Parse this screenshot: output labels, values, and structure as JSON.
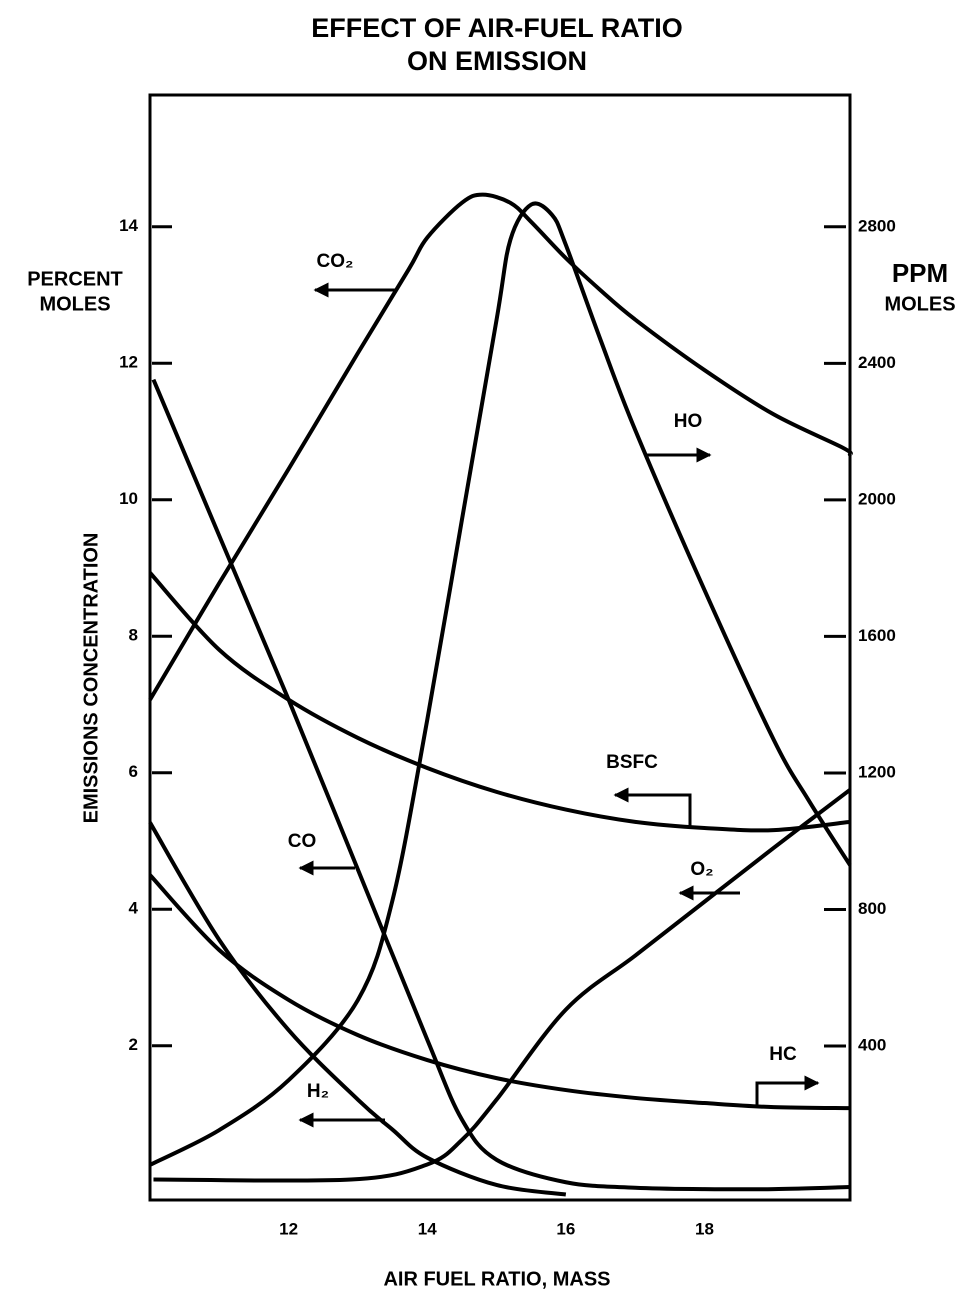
{
  "chart_data": {
    "type": "line",
    "title": [
      "EFFECT OF AIR-FUEL RATIO",
      "ON EMISSION"
    ],
    "x_label": "AIR FUEL RATIO, MASS",
    "y_label": "EMISSIONS CONCENTRATION",
    "y_unit": [
      "PERCENT",
      "MOLES"
    ],
    "y2_unit": [
      "PPM",
      "MOLES"
    ],
    "xlim": [
      10,
      20.1
    ],
    "xticks": [
      12,
      14,
      16,
      18
    ],
    "ylim": [
      -0.26,
      15.93
    ],
    "yticks": [
      2,
      4,
      6,
      8,
      10,
      12,
      14
    ],
    "y2lim": [
      -51,
      3186
    ],
    "y2ticks": [
      400,
      800,
      1200,
      1600,
      2000,
      2400,
      2800
    ],
    "series": [
      {
        "name": "CO₂",
        "color": "#000000",
        "x": [
          10,
          11,
          12,
          13,
          13.73,
          14,
          14.5,
          14.8,
          15.2,
          15.5,
          16,
          16.5,
          17,
          18,
          19,
          20,
          20.1
        ],
        "values": [
          7.07,
          8.78,
          10.45,
          12.15,
          13.37,
          13.84,
          14.35,
          14.47,
          14.35,
          14.07,
          13.54,
          13.07,
          12.64,
          11.9,
          11.25,
          10.76,
          10.66
        ]
      },
      {
        "name": "HO",
        "color": "#000000",
        "axis": "y2",
        "x": [
          10,
          11,
          12,
          13,
          13.5,
          14,
          14.5,
          15,
          15.2,
          15.5,
          15.8,
          16,
          16.5,
          17,
          18,
          19,
          19.5,
          20.1
        ],
        "values": [
          52,
          154,
          300,
          535,
          828,
          1355,
          1941,
          2527,
          2762,
          2865,
          2835,
          2747,
          2469,
          2205,
          1736,
          1297,
          1121,
          930
        ]
      },
      {
        "name": "BSFC",
        "color": "#000000",
        "x": [
          10,
          11,
          12,
          13,
          14,
          15,
          16,
          17,
          18,
          19,
          20.1
        ],
        "values": [
          8.93,
          7.8,
          7.07,
          6.51,
          6.07,
          5.72,
          5.46,
          5.28,
          5.19,
          5.16,
          5.28
        ]
      },
      {
        "name": "CO",
        "color": "#000000",
        "x": [
          10.05,
          11,
          12,
          13,
          14,
          14.5,
          15,
          16,
          17,
          18,
          19,
          20.1
        ],
        "values": [
          11.76,
          9.47,
          7.07,
          4.58,
          2.09,
          0.92,
          0.33,
          0,
          -0.08,
          -0.1,
          -0.1,
          -0.07
        ]
      },
      {
        "name": "O₂",
        "color": "#000000",
        "x": [
          10.05,
          12.9,
          14,
          14.5,
          15,
          16,
          17,
          18,
          19,
          20.1
        ],
        "values": [
          0.04,
          0.04,
          0.26,
          0.62,
          1.21,
          2.53,
          3.32,
          4.11,
          4.9,
          5.75
        ]
      },
      {
        "name": "H₂",
        "color": "#000000",
        "x": [
          10,
          11,
          12,
          13,
          13.5,
          14,
          15,
          16
        ],
        "values": [
          5.27,
          3.55,
          2.23,
          1.21,
          0.77,
          0.36,
          -0.04,
          -0.18
        ]
      },
      {
        "name": "HC",
        "color": "#000000",
        "axis": "y2",
        "x": [
          10,
          11,
          12,
          13,
          14,
          15,
          16,
          17,
          18,
          19,
          20.1
        ],
        "values": [
          901,
          681,
          535,
          432,
          359,
          306,
          271,
          248,
          233,
          221,
          218
        ]
      }
    ]
  }
}
